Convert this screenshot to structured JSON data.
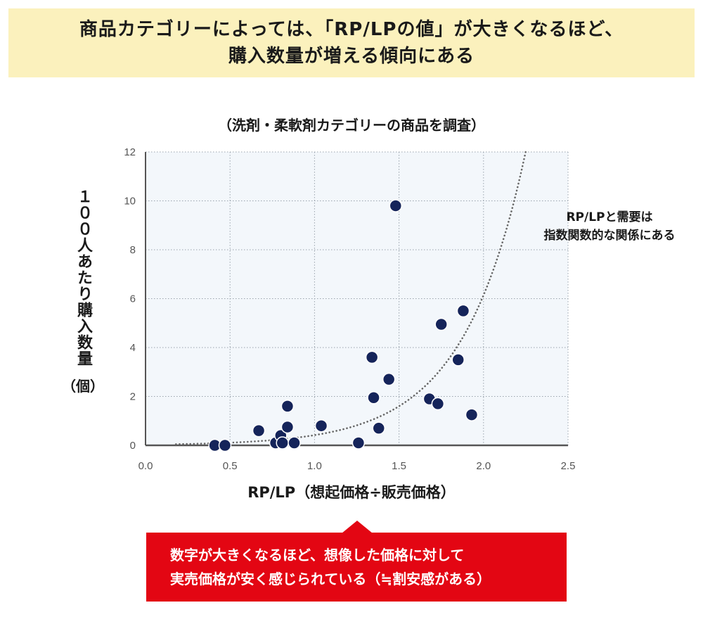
{
  "header": {
    "line1": "商品カテゴリーによっては、「RP/LPの値」が大きくなるほど、",
    "line2": "購入数量が増える傾向にある"
  },
  "subtitle": "（洗剤・柔軟剤カテゴリーの商品を調査）",
  "annotation": {
    "line1": "RP/LPと需要は",
    "line2": "指数関数的な関係にある"
  },
  "callout": {
    "line1": "数字が大きくなるほど、想像した価格に対して",
    "line2": "実売価格が安く感じられている（≒割安感がある）"
  },
  "colors": {
    "header_bg": "#fbf1bd",
    "plot_bg": "#f3f7fb",
    "point": "#15245a",
    "callout_bg": "#e30613"
  },
  "chart_data": {
    "type": "scatter",
    "xlabel": "RP/LP（想起価格÷販売価格）",
    "ylabel": "１００人あたり購入数量",
    "ylabel_unit": "（個）",
    "xlim": [
      0,
      2.5
    ],
    "ylim": [
      0,
      12
    ],
    "xticks": [
      "0.0",
      "0.5",
      "1.0",
      "1.5",
      "2.0",
      "2.5"
    ],
    "yticks": [
      "0",
      "2",
      "4",
      "6",
      "8",
      "10",
      "12"
    ],
    "grid": true,
    "points": [
      {
        "x": 0.41,
        "y": 0.0
      },
      {
        "x": 0.47,
        "y": 0.0
      },
      {
        "x": 0.67,
        "y": 0.6
      },
      {
        "x": 0.77,
        "y": 0.1
      },
      {
        "x": 0.8,
        "y": 0.4
      },
      {
        "x": 0.81,
        "y": 0.1
      },
      {
        "x": 0.84,
        "y": 1.6
      },
      {
        "x": 0.84,
        "y": 0.75
      },
      {
        "x": 0.88,
        "y": 0.1
      },
      {
        "x": 1.04,
        "y": 0.8
      },
      {
        "x": 1.26,
        "y": 0.1
      },
      {
        "x": 1.34,
        "y": 3.6
      },
      {
        "x": 1.35,
        "y": 1.95
      },
      {
        "x": 1.38,
        "y": 0.7
      },
      {
        "x": 1.44,
        "y": 2.7
      },
      {
        "x": 1.48,
        "y": 9.8
      },
      {
        "x": 1.68,
        "y": 1.9
      },
      {
        "x": 1.73,
        "y": 1.7
      },
      {
        "x": 1.75,
        "y": 4.95
      },
      {
        "x": 1.85,
        "y": 3.5
      },
      {
        "x": 1.88,
        "y": 5.5
      },
      {
        "x": 1.93,
        "y": 1.25
      }
    ],
    "trend": {
      "type": "exponential",
      "style": "dotted",
      "a": 0.0283,
      "b": 2.69
    }
  }
}
